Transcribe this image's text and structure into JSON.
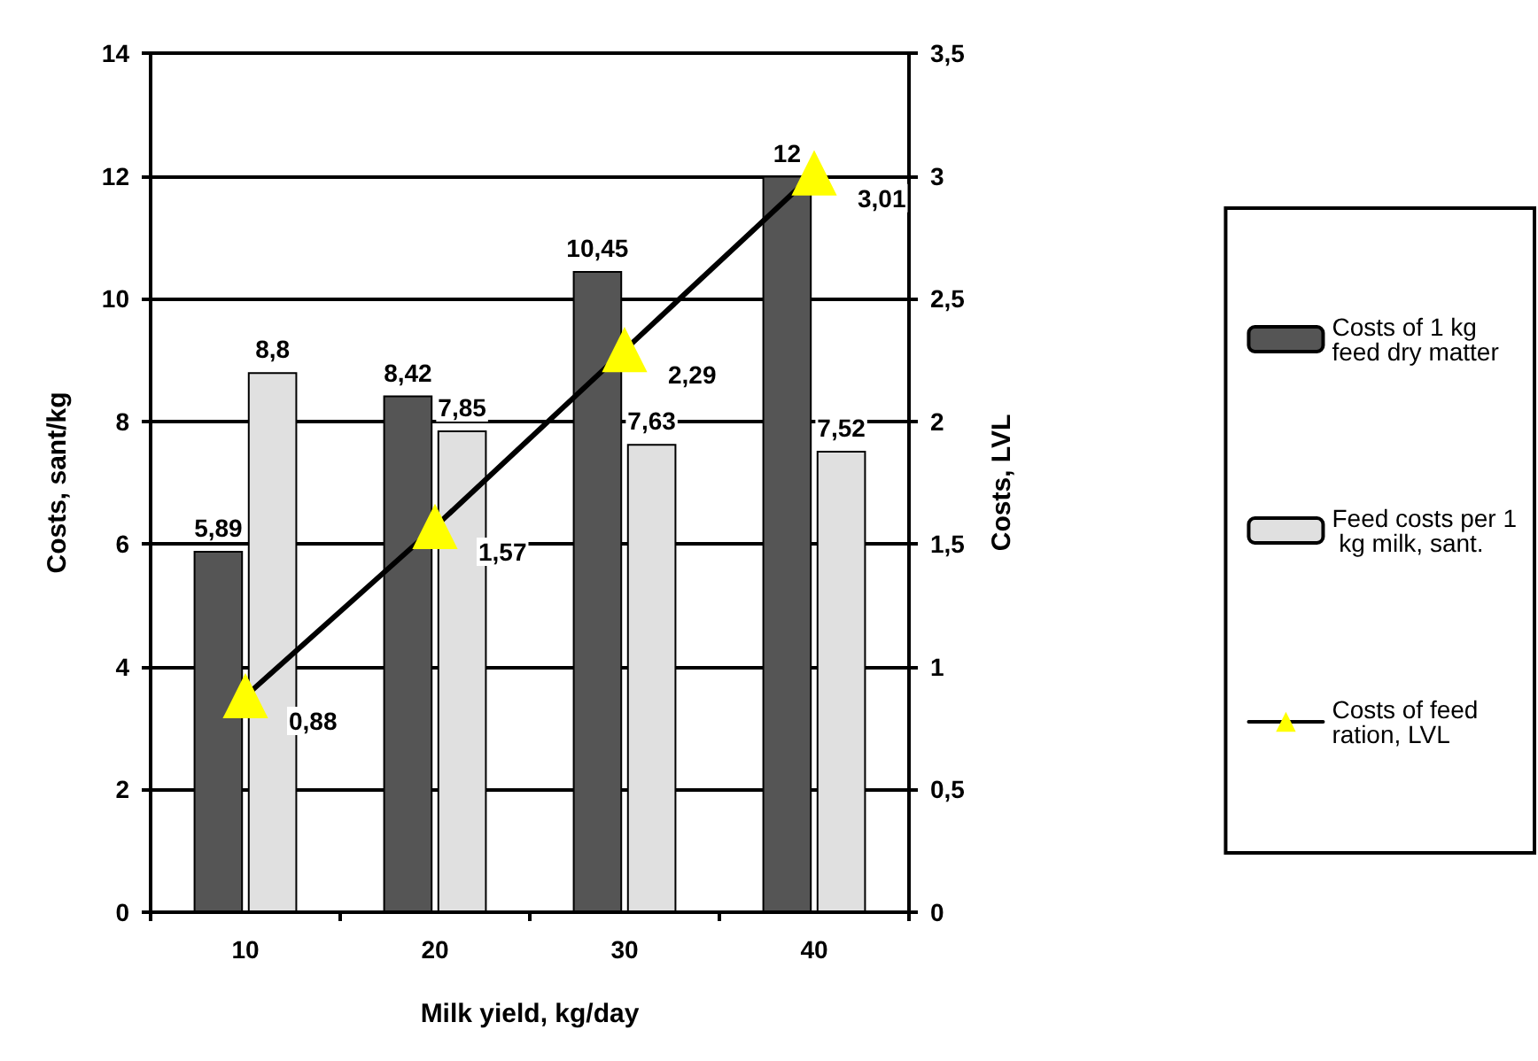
{
  "chart_data": {
    "type": "bar",
    "xlabel": "Milk yield, kg/day",
    "ylabel": "Costs, sant/kg",
    "y2label": "Costs, LVL",
    "categories": [
      "10",
      "20",
      "30",
      "40"
    ],
    "series": [
      {
        "name": "Costs of 1 kg feed dry matter",
        "color": "#555555",
        "values": [
          5.89,
          8.42,
          10.45,
          12
        ],
        "value_labels": [
          "5,89",
          "8,42",
          "10,45",
          "12"
        ]
      },
      {
        "name": "Feed costs per 1 kg milk, sant.",
        "color": "#e0e0e0",
        "values": [
          8.8,
          7.85,
          7.63,
          7.52
        ],
        "value_labels": [
          "8,8",
          "7,85",
          "7,63",
          "7,52"
        ]
      },
      {
        "name": "Costs of feed ration, LVL",
        "type": "line",
        "axis": "y2",
        "color": "#000000",
        "marker": "triangle",
        "values": [
          0.88,
          1.57,
          2.29,
          3.01
        ],
        "value_labels": [
          "0,88",
          "1,57",
          "2,29",
          "3,01"
        ]
      }
    ],
    "ylim": [
      0,
      14
    ],
    "yticks": [
      0,
      2,
      4,
      6,
      8,
      10,
      12,
      14
    ],
    "y2lim": [
      0,
      3.5
    ],
    "y2ticks": [
      0,
      {
        "value": 0.5,
        "label": "0,5"
      },
      1,
      {
        "value": 1.5,
        "label": "1,5"
      },
      2,
      {
        "value": 2.5,
        "label": "2,5"
      },
      3,
      {
        "value": 3.5,
        "label": "3,5"
      }
    ],
    "grid": "y",
    "legend": "right"
  }
}
